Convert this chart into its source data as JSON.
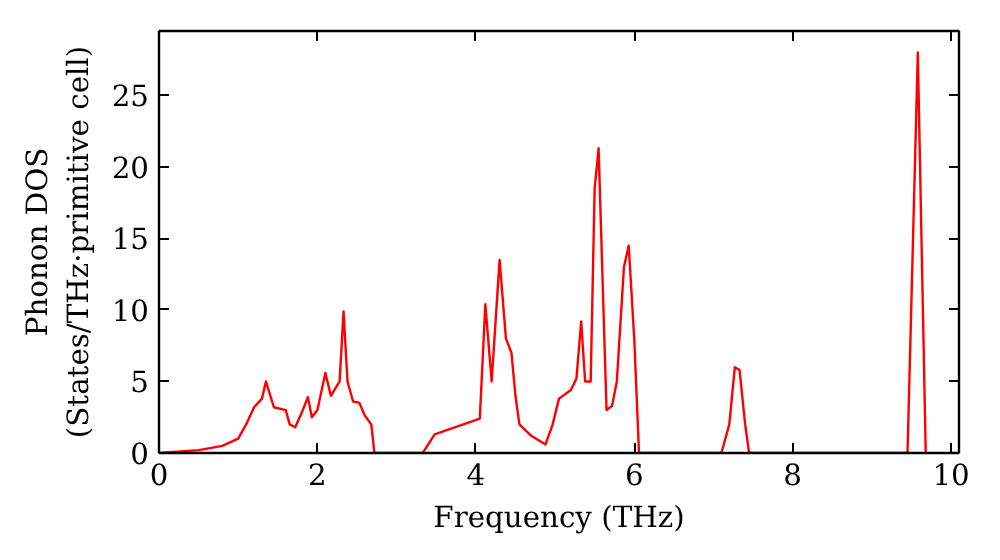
{
  "chart_data": {
    "type": "line",
    "xlabel": "Frequency (THz)",
    "ylabel": "Phonon DOS\n(States/THz·primitive cell)",
    "xlim": [
      0,
      10.1
    ],
    "ylim": [
      0,
      29.5
    ],
    "xticks": [
      0,
      2,
      4,
      6,
      8,
      10
    ],
    "yticks": [
      0,
      5,
      10,
      15,
      20,
      25
    ],
    "grid": false,
    "marker": "none",
    "line_style": "solid",
    "series": [
      {
        "color": "#ff0000",
        "x": [
          0,
          0.5,
          0.8,
          1.0,
          1.1,
          1.2,
          1.3,
          1.35,
          1.45,
          1.6,
          1.65,
          1.72,
          1.8,
          1.88,
          1.93,
          2.0,
          2.1,
          2.17,
          2.28,
          2.33,
          2.38,
          2.45,
          2.53,
          2.6,
          2.68,
          2.72,
          3.33,
          3.48,
          4.05,
          4.12,
          4.2,
          4.3,
          4.38,
          4.45,
          4.5,
          4.55,
          4.7,
          4.88,
          4.97,
          5.05,
          5.2,
          5.27,
          5.33,
          5.38,
          5.45,
          5.5,
          5.55,
          5.65,
          5.72,
          5.78,
          5.87,
          5.93,
          6.0,
          6.06,
          7.1,
          7.2,
          7.27,
          7.33,
          7.4,
          7.45,
          9.45,
          9.58,
          9.68
        ],
        "values": [
          0,
          0.2,
          0.5,
          1.0,
          2,
          3.2,
          3.8,
          5,
          3.2,
          3.0,
          2,
          1.8,
          2.8,
          3.9,
          2.5,
          3,
          5.6,
          4,
          5,
          9.9,
          5,
          3.6,
          3.5,
          2.6,
          2,
          0,
          0,
          1.3,
          2.4,
          10.4,
          5,
          13.5,
          8,
          7,
          4,
          2,
          1.2,
          0.6,
          2,
          3.8,
          4.4,
          5.2,
          9.2,
          5,
          5,
          18.5,
          21.3,
          3,
          3.3,
          5,
          13,
          14.5,
          8,
          0,
          0,
          2,
          6,
          5.8,
          2,
          0,
          0,
          28,
          0
        ]
      }
    ]
  }
}
